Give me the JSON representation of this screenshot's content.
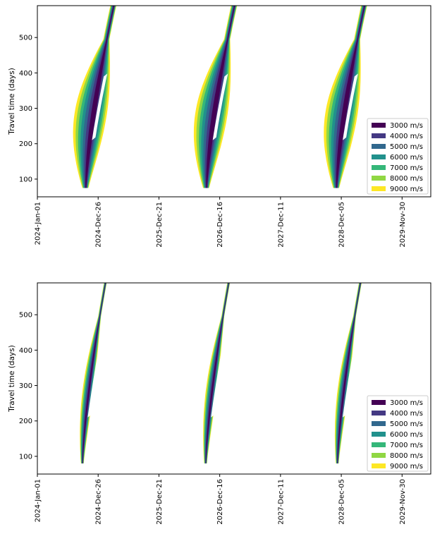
{
  "colors": {
    "levels": [
      "#440154",
      "#443983",
      "#31688e",
      "#21918c",
      "#35b779",
      "#90d743",
      "#fde725"
    ],
    "axis": "#000000",
    "background": "#ffffff"
  },
  "chart_data": [
    {
      "type": "contourf",
      "title": "",
      "xlabel": "",
      "ylabel": "Travel time (days)",
      "ylim": [
        50,
        590
      ],
      "ytick_values": [
        100,
        200,
        300,
        400,
        500
      ],
      "yticks": [
        "100",
        "200",
        "300",
        "400",
        "500"
      ],
      "xlim_days": [
        0,
        2330
      ],
      "xtick_days": [
        0,
        360,
        720,
        1080,
        1440,
        1800,
        2160
      ],
      "xticks": [
        "2024-Jan-01",
        "2024-Dec-26",
        "2025-Dec-21",
        "2026-Dec-16",
        "2027-Dec-11",
        "2028-Dec-05",
        "2029-Nov-30"
      ],
      "legend_position": "lower-right",
      "levels": [
        {
          "label": "3000 m/s",
          "value": 3000
        },
        {
          "label": "4000 m/s",
          "value": 4000
        },
        {
          "label": "5000 m/s",
          "value": 5000
        },
        {
          "label": "6000 m/s",
          "value": 6000
        },
        {
          "label": "7000 m/s",
          "value": 7000
        },
        {
          "label": "8000 m/s",
          "value": 8000
        },
        {
          "label": "9000 m/s",
          "value": 9000
        }
      ],
      "windows": [
        {
          "center_day": 300,
          "peak_level": 3000
        },
        {
          "center_day": 1015,
          "peak_level": 3000
        },
        {
          "center_day": 1785,
          "peak_level": 3000
        }
      ]
    },
    {
      "type": "contourf",
      "title": "",
      "xlabel": "",
      "ylabel": "Travel time (days)",
      "ylim": [
        50,
        590
      ],
      "ytick_values": [
        100,
        200,
        300,
        400,
        500
      ],
      "yticks": [
        "100",
        "200",
        "300",
        "400",
        "500"
      ],
      "xlim_days": [
        0,
        2330
      ],
      "xtick_days": [
        0,
        360,
        720,
        1080,
        1440,
        1800,
        2160
      ],
      "xticks": [
        "2024-Jan-01",
        "2024-Dec-26",
        "2025-Dec-21",
        "2026-Dec-16",
        "2027-Dec-11",
        "2028-Dec-05",
        "2029-Nov-30"
      ],
      "legend_position": "lower-right",
      "levels": [
        {
          "label": "3000 m/s",
          "value": 3000
        },
        {
          "label": "4000 m/s",
          "value": 4000
        },
        {
          "label": "5000 m/s",
          "value": 5000
        },
        {
          "label": "6000 m/s",
          "value": 6000
        },
        {
          "label": "7000 m/s",
          "value": 7000
        },
        {
          "label": "8000 m/s",
          "value": 8000
        },
        {
          "label": "9000 m/s",
          "value": 9000
        }
      ],
      "windows": [
        {
          "center_day": 280,
          "peak_level": 3000
        },
        {
          "center_day": 1010,
          "peak_level": 3000
        },
        {
          "center_day": 1790,
          "peak_level": 3000
        }
      ]
    }
  ]
}
